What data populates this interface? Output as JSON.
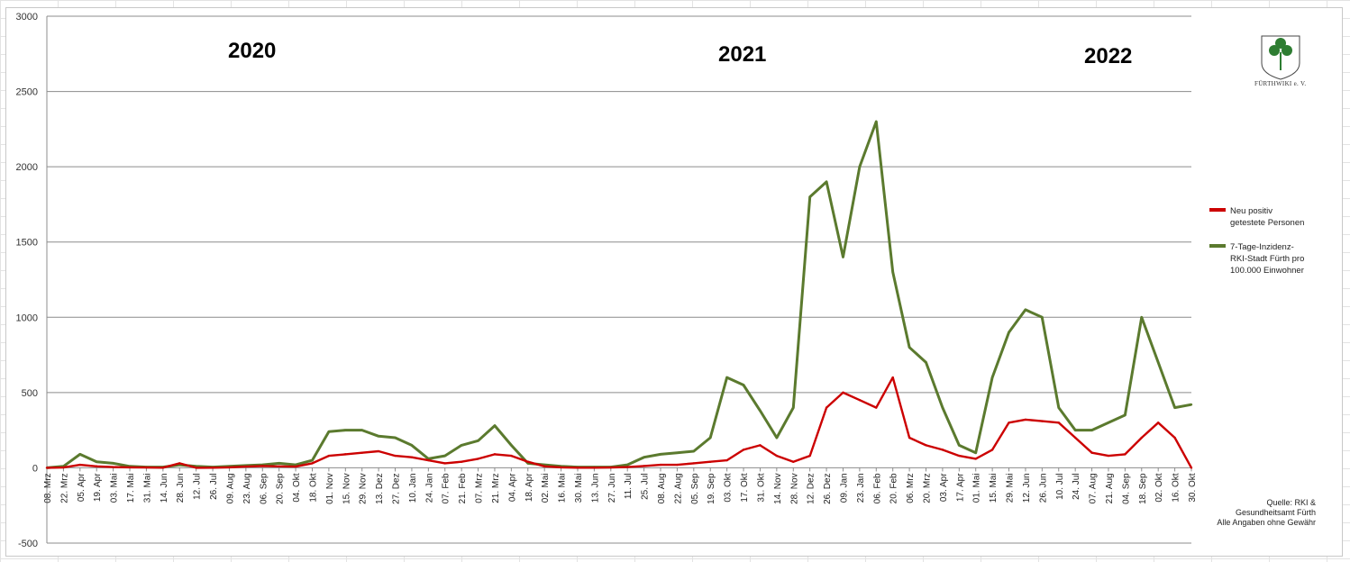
{
  "chart_data": {
    "type": "line",
    "ylim": [
      -500,
      3000
    ],
    "y_ticks": [
      -500,
      0,
      500,
      1000,
      1500,
      2000,
      2500,
      3000
    ],
    "grid": "horizontal",
    "legend_position": "right",
    "x_ticks": [
      "08. Mrz",
      "22. Mrz",
      "05. Apr",
      "19. Apr",
      "03. Mai",
      "17. Mai",
      "31. Mai",
      "14. Jun",
      "28. Jun",
      "12. Jul",
      "26. Jul",
      "09. Aug",
      "23. Aug",
      "06. Sep",
      "20. Sep",
      "04. Okt",
      "18. Okt",
      "01. Nov",
      "15. Nov",
      "29. Nov",
      "13. Dez",
      "27. Dez",
      "10. Jan",
      "24. Jan",
      "07. Feb",
      "21. Feb",
      "07. Mrz",
      "21. Mrz",
      "04. Apr",
      "18. Apr",
      "02. Mai",
      "16. Mai",
      "30. Mai",
      "13. Jun",
      "27. Jun",
      "11. Jul",
      "25. Jul",
      "08. Aug",
      "22. Aug",
      "05. Sep",
      "19. Sep",
      "03. Okt",
      "17. Okt",
      "31. Okt",
      "14. Nov",
      "28. Nov",
      "12. Dez",
      "26. Dez",
      "09. Jan",
      "23. Jan",
      "06. Feb",
      "20. Feb",
      "06. Mrz",
      "20. Mrz",
      "03. Apr",
      "17. Apr",
      "01. Mai",
      "15. Mai",
      "29. Mai",
      "12. Jun",
      "26. Jun",
      "10. Jul",
      "24. Jul",
      "07. Aug",
      "21. Aug",
      "04. Sep",
      "18. Sep",
      "02. Okt",
      "16. Okt",
      "30. Okt"
    ],
    "year_labels": [
      "2020",
      "2021",
      "2022"
    ],
    "series": [
      {
        "name": "Neu positiv getestete Personen",
        "color": "#cc0000",
        "values": [
          0,
          2,
          20,
          10,
          5,
          3,
          2,
          1,
          30,
          0,
          1,
          3,
          8,
          12,
          10,
          8,
          30,
          80,
          90,
          100,
          110,
          80,
          70,
          50,
          30,
          40,
          60,
          90,
          80,
          40,
          10,
          3,
          1,
          1,
          2,
          5,
          12,
          20,
          20,
          30,
          40,
          50,
          120,
          150,
          80,
          40,
          80,
          400,
          500,
          450,
          400,
          600,
          200,
          150,
          120,
          80,
          60,
          120,
          300,
          320,
          310,
          300,
          200,
          100,
          80,
          90,
          200,
          300,
          200,
          0
        ]
      },
      {
        "name": "7-Tage-Inzidenz-RKI-Stadt Fürth pro 100.000 Einwohner",
        "color": "#5b7a2e",
        "values": [
          0,
          10,
          90,
          40,
          30,
          10,
          5,
          5,
          20,
          10,
          5,
          10,
          15,
          20,
          30,
          20,
          50,
          240,
          250,
          250,
          210,
          200,
          150,
          60,
          80,
          150,
          180,
          280,
          150,
          30,
          20,
          10,
          5,
          5,
          5,
          20,
          70,
          90,
          100,
          110,
          200,
          600,
          550,
          380,
          200,
          400,
          1800,
          1900,
          1400,
          2000,
          2300,
          1300,
          800,
          700,
          400,
          150,
          100,
          600,
          900,
          1050,
          1000,
          400,
          250,
          250,
          300,
          350,
          1000,
          700,
          400,
          420
        ]
      }
    ],
    "source_note": [
      "Quelle: RKI &",
      "Gesundheitsamt Fürth",
      "Alle Angaben ohne Gewähr"
    ]
  },
  "legend": {
    "item1_line1": "Neu positiv",
    "item1_line2": "getestete Personen",
    "item2_line1": "7-Tage-Inzidenz-",
    "item2_line2": "RKI-Stadt Fürth pro",
    "item2_line3": "100.000 Einwohner"
  },
  "logo": {
    "label": "FÜRTHWIKI e. V."
  }
}
